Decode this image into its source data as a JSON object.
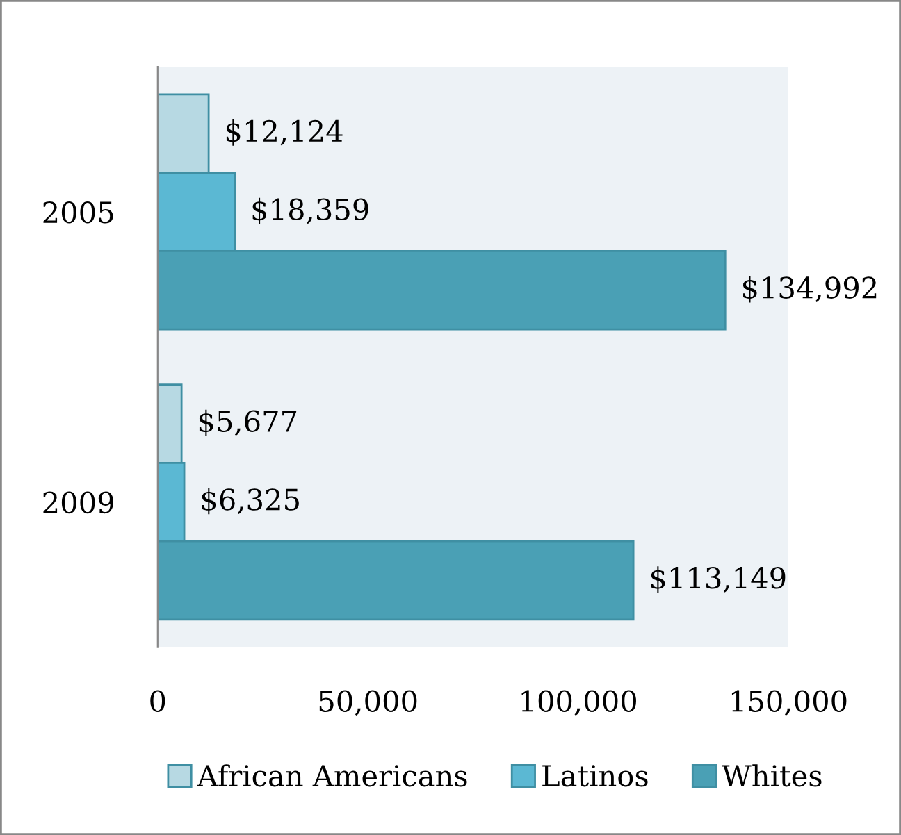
{
  "chart_data": {
    "type": "bar",
    "orientation": "horizontal",
    "categories": [
      "2005",
      "2009"
    ],
    "series": [
      {
        "name": "African Americans",
        "color": "#b7d9e3",
        "values": [
          12124,
          5677
        ],
        "value_labels": [
          "$12,124",
          "$5,677"
        ]
      },
      {
        "name": "Latinos",
        "color": "#5bb8d3",
        "values": [
          18359,
          6325
        ],
        "value_labels": [
          "$18,359",
          "$6,325"
        ]
      },
      {
        "name": "Whites",
        "color": "#4aa0b5",
        "values": [
          134992,
          113149
        ],
        "value_labels": [
          "$134,992",
          "$113,149"
        ]
      }
    ],
    "xlim": [
      0,
      150000
    ],
    "xticks": [
      {
        "value": 0,
        "label": "0"
      },
      {
        "value": 50000,
        "label": "50,000"
      },
      {
        "value": 100000,
        "label": "100,000"
      },
      {
        "value": 150000,
        "label": "150,000"
      }
    ],
    "grid": false,
    "legend": "bottom"
  }
}
